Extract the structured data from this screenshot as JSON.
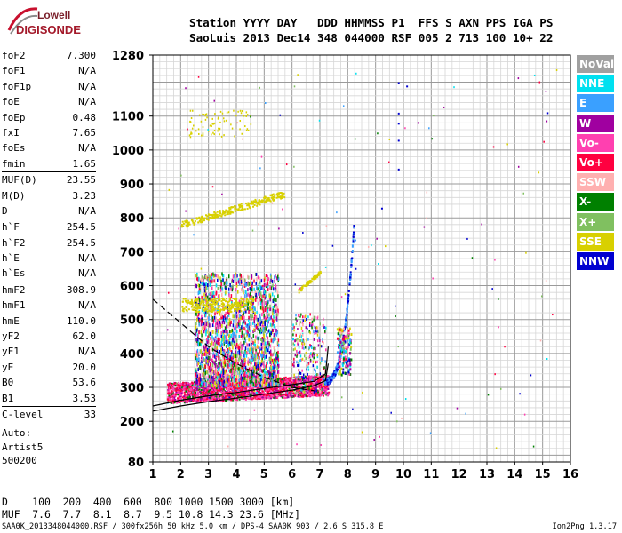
{
  "logo": {
    "top": "Lowell",
    "bottom": "DIGISONDE"
  },
  "header": {
    "line1": "Station YYYY DAY   DDD HHMMSS P1  FFS S AXN PPS IGA PS",
    "line2": "SaoLuis 2013 Dec14 348 044000 RSF 005 2 713 100 10+ 22"
  },
  "params": [
    {
      "label": "foF2",
      "value": "7.300"
    },
    {
      "label": "foF1",
      "value": "N/A"
    },
    {
      "label": "foF1p",
      "value": "N/A"
    },
    {
      "label": "foE",
      "value": "N/A"
    },
    {
      "label": "foEp",
      "value": "0.48"
    },
    {
      "label": "fxI",
      "value": "7.65"
    },
    {
      "label": "foEs",
      "value": "N/A"
    },
    {
      "label": "fmin",
      "value": "1.65"
    },
    {
      "label": "MUF(D)",
      "value": "23.55"
    },
    {
      "label": "M(D)",
      "value": "3.23"
    },
    {
      "label": "D",
      "value": "N/A"
    },
    {
      "label": "h`F",
      "value": "254.5"
    },
    {
      "label": "h`F2",
      "value": "254.5"
    },
    {
      "label": "h`E",
      "value": "N/A"
    },
    {
      "label": "h`Es",
      "value": "N/A"
    },
    {
      "label": "hmF2",
      "value": "308.9"
    },
    {
      "label": "hmF1",
      "value": "N/A"
    },
    {
      "label": "hmE",
      "value": "110.0"
    },
    {
      "label": "yF2",
      "value": "62.0"
    },
    {
      "label": "yF1",
      "value": "N/A"
    },
    {
      "label": "yE",
      "value": "20.0"
    },
    {
      "label": "B0",
      "value": "53.6"
    },
    {
      "label": "B1",
      "value": "3.53"
    },
    {
      "label": "C-level",
      "value": "33"
    }
  ],
  "auto": {
    "line1": "Auto:",
    "line2": "Artist5",
    "line3": "500200"
  },
  "legend": [
    {
      "label": "NoVal",
      "color": "#a0a0a0"
    },
    {
      "label": "NNE",
      "color": "#00e0f0"
    },
    {
      "label": "E",
      "color": "#3aa0ff"
    },
    {
      "label": "W",
      "color": "#a000a0"
    },
    {
      "label": "Vo-",
      "color": "#ff40b0"
    },
    {
      "label": "Vo+",
      "color": "#ff0040"
    },
    {
      "label": "SSW",
      "color": "#ffb0b0"
    },
    {
      "label": "X-",
      "color": "#008000"
    },
    {
      "label": "X+",
      "color": "#80c060"
    },
    {
      "label": "SSE",
      "color": "#d8d000"
    },
    {
      "label": "NNW",
      "color": "#0000d0"
    }
  ],
  "muf_table": {
    "row1": "D    100  200  400  600  800 1000 1500 3000 [km]",
    "row2": "MUF  7.6  7.7  8.1  8.7  9.5 10.8 14.3 23.6 [MHz]"
  },
  "footer": "SAA0K_2013348044000.RSF / 300fx256h 50 kHz 5.0 km / DPS-4 SAA0K 903 / 2.6 S 315.8 E",
  "version": "Ion2Png 1.3.17",
  "chart_data": {
    "type": "scatter",
    "title": "",
    "xlabel": "",
    "ylabel": "",
    "xlim": [
      1,
      16
    ],
    "ylim": [
      80,
      1280
    ],
    "xticks": [
      1,
      2,
      3,
      4,
      5,
      6,
      7,
      8,
      9,
      10,
      11,
      12,
      13,
      14,
      15,
      16
    ],
    "yticks": [
      80,
      200,
      300,
      400,
      500,
      600,
      700,
      800,
      900,
      1000,
      1100,
      1280
    ],
    "grid": true,
    "profile_solid": [
      [
        1.0,
        230
      ],
      [
        2.0,
        245
      ],
      [
        3.0,
        258
      ],
      [
        4.0,
        268
      ],
      [
        5.0,
        280
      ],
      [
        6.0,
        292
      ],
      [
        6.8,
        305
      ],
      [
        7.2,
        320
      ],
      [
        7.3,
        370
      ]
    ],
    "profile_solid2": [
      [
        1.0,
        245
      ],
      [
        2.0,
        262
      ],
      [
        3.0,
        275
      ],
      [
        4.0,
        285
      ],
      [
        5.0,
        297
      ],
      [
        6.0,
        308
      ],
      [
        6.8,
        318
      ],
      [
        7.2,
        340
      ],
      [
        7.3,
        420
      ]
    ],
    "profile_dashed": [
      [
        1.0,
        560
      ],
      [
        2.0,
        490
      ],
      [
        3.0,
        420
      ],
      [
        4.0,
        370
      ],
      [
        5.0,
        330
      ],
      [
        6.0,
        300
      ],
      [
        6.8,
        290
      ]
    ],
    "echo_regions": [
      {
        "label": "SSE",
        "x": [
          1.9,
          4.5
        ],
        "y": [
          520,
          560
        ]
      },
      {
        "label": "SSE",
        "x": [
          2.0,
          5.6
        ],
        "y": [
          770,
          860
        ]
      },
      {
        "label": "Vo+",
        "x": [
          1.5,
          7.0
        ],
        "y": [
          260,
          330
        ]
      },
      {
        "label": "W",
        "x": [
          2.5,
          5.5
        ],
        "y": [
          320,
          620
        ]
      }
    ]
  }
}
